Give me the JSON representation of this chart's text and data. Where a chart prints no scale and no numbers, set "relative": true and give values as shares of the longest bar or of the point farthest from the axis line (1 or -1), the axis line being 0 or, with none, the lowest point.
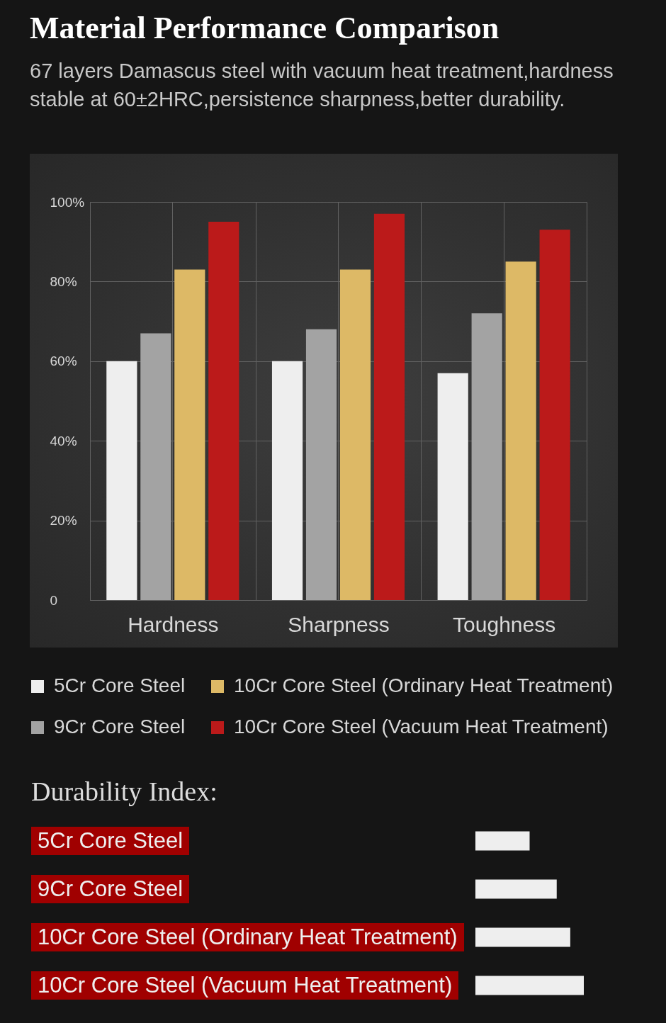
{
  "chart_data": [
    {
      "type": "bar",
      "title": "Material Performance Comparison",
      "subtitle": "67 layers Damascus steel with vacuum heat treatment,hardness stable at 60±2HRC,persistence sharpness,better durability.",
      "categories": [
        "Hardness",
        "Sharpness",
        "Toughness"
      ],
      "series": [
        {
          "name": "5Cr Core Steel",
          "color": "#eeeeee",
          "values": [
            60,
            60,
            57
          ]
        },
        {
          "name": "9Cr Core Steel",
          "color": "#a3a3a3",
          "values": [
            67,
            68,
            72
          ]
        },
        {
          "name": "10Cr Core Steel (Ordinary Heat Treatment)",
          "color": "#ddb966",
          "values": [
            83,
            83,
            85
          ]
        },
        {
          "name": "10Cr Core Steel (Vacuum Heat Treatment)",
          "color": "#bb1a1a",
          "values": [
            95,
            97,
            93
          ]
        }
      ],
      "ylim": [
        0,
        100
      ],
      "yticks": [
        0,
        {
          "value": 20,
          "label": "20%"
        },
        {
          "value": 40,
          "label": "40%"
        },
        {
          "value": 60,
          "label": "60%"
        },
        {
          "value": 80,
          "label": "80%"
        },
        {
          "value": 100,
          "label": "100%"
        }
      ],
      "grid": true,
      "legend": "bottom"
    },
    {
      "type": "bar",
      "orientation": "horizontal",
      "relative": true,
      "title": "Durability Index:",
      "categories": [
        "5Cr Core Steel",
        "9Cr Core Steel",
        "10Cr Core Steel (Ordinary Heat Treatment)",
        "10Cr Core Steel (Vacuum Heat Treatment)"
      ],
      "values": [
        0.5,
        0.75,
        0.875,
        1
      ],
      "color": "#eeeeee"
    }
  ]
}
